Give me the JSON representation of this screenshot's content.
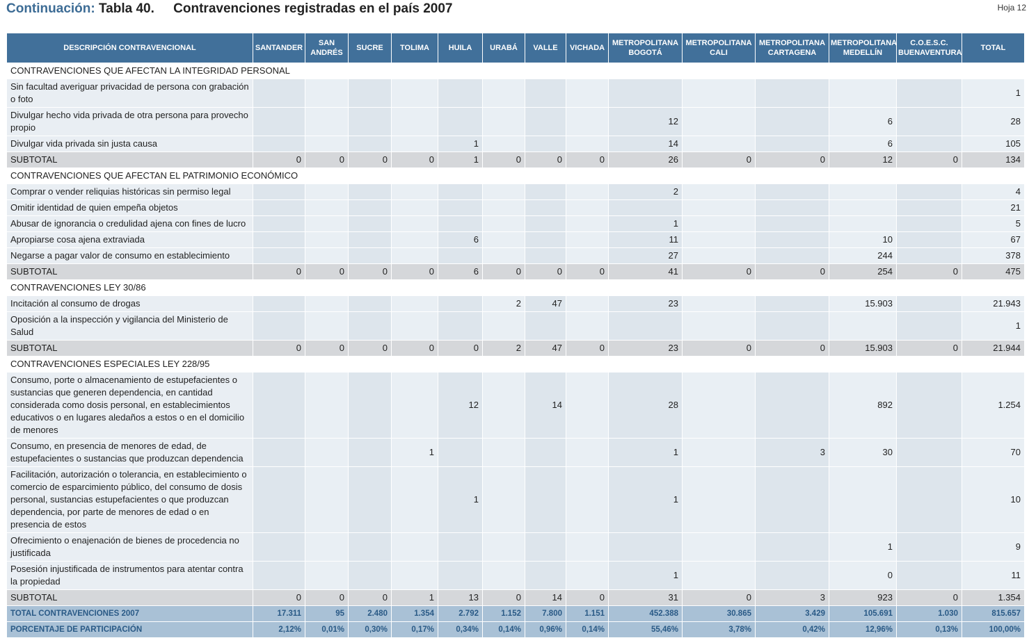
{
  "header": {
    "continuation": "Continuación:",
    "table": "Tabla 40.",
    "title": "Contravenciones registradas en el país 2007",
    "sheet": "Hoja 12"
  },
  "table": {
    "columns": [
      "DESCRIPCIÓN CONTRAVENCIONAL",
      "SANTANDER",
      "SAN ANDRÉS",
      "SUCRE",
      "TOLIMA",
      "HUILA",
      "URABÁ",
      "VALLE",
      "VICHADA",
      "METROPOLITANA BOGOTÁ",
      "METROPOLITANA CALI",
      "METROPOLITANA CARTAGENA",
      "METROPOLITANA MEDELLÍN",
      "C.O.E.S.C. BUENAVENTURA",
      "TOTAL"
    ],
    "sections": [
      {
        "title": "CONTRAVENCIONES QUE AFECTAN LA INTEGRIDAD PERSONAL",
        "rows": [
          {
            "label": "Sin facultad averiguar privacidad de persona con grabación o foto",
            "values": [
              null,
              null,
              null,
              null,
              null,
              null,
              null,
              null,
              null,
              null,
              null,
              null,
              null,
              "1"
            ]
          },
          {
            "label": "Divulgar hecho vida privada de otra persona para provecho propio",
            "values": [
              null,
              null,
              null,
              null,
              null,
              null,
              null,
              null,
              "12",
              null,
              null,
              "6",
              null,
              "28"
            ]
          },
          {
            "label": "Divulgar vida privada sin justa causa",
            "values": [
              null,
              null,
              null,
              null,
              "1",
              null,
              null,
              null,
              "14",
              null,
              null,
              "6",
              null,
              "105"
            ]
          }
        ],
        "subtotal": {
          "label": "SUBTOTAL",
          "values": [
            "0",
            "0",
            "0",
            "0",
            "1",
            "0",
            "0",
            "0",
            "26",
            "0",
            "0",
            "12",
            "0",
            "134"
          ]
        }
      },
      {
        "title": "CONTRAVENCIONES QUE AFECTAN EL PATRIMONIO ECONÓMICO",
        "rows": [
          {
            "label": "Comprar o vender reliquias históricas sin permiso legal",
            "values": [
              null,
              null,
              null,
              null,
              null,
              null,
              null,
              null,
              "2",
              null,
              null,
              null,
              null,
              "4"
            ]
          },
          {
            "label": "Omitir identidad de quien empeña objetos",
            "values": [
              null,
              null,
              null,
              null,
              null,
              null,
              null,
              null,
              null,
              null,
              null,
              null,
              null,
              "21"
            ]
          },
          {
            "label": "Abusar de ignorancia o credulidad ajena con fines de lucro",
            "values": [
              null,
              null,
              null,
              null,
              null,
              null,
              null,
              null,
              "1",
              null,
              null,
              null,
              null,
              "5"
            ]
          },
          {
            "label": "Apropiarse cosa ajena extraviada",
            "values": [
              null,
              null,
              null,
              null,
              "6",
              null,
              null,
              null,
              "11",
              null,
              null,
              "10",
              null,
              "67"
            ]
          },
          {
            "label": "Negarse a pagar valor de consumo en establecimiento",
            "values": [
              null,
              null,
              null,
              null,
              null,
              null,
              null,
              null,
              "27",
              null,
              null,
              "244",
              null,
              "378"
            ]
          }
        ],
        "subtotal": {
          "label": "SUBTOTAL",
          "values": [
            "0",
            "0",
            "0",
            "0",
            "6",
            "0",
            "0",
            "0",
            "41",
            "0",
            "0",
            "254",
            "0",
            "475"
          ]
        }
      },
      {
        "title": "CONTRAVENCIONES LEY 30/86",
        "rows": [
          {
            "label": "Incitación al consumo de drogas",
            "values": [
              null,
              null,
              null,
              null,
              null,
              "2",
              "47",
              null,
              "23",
              null,
              null,
              "15.903",
              null,
              "21.943"
            ]
          },
          {
            "label": "Oposición a la inspección y vigilancia del Ministerio de Salud",
            "values": [
              null,
              null,
              null,
              null,
              null,
              null,
              null,
              null,
              null,
              null,
              null,
              null,
              null,
              "1"
            ]
          }
        ],
        "subtotal": {
          "label": "SUBTOTAL",
          "values": [
            "0",
            "0",
            "0",
            "0",
            "0",
            "2",
            "47",
            "0",
            "23",
            "0",
            "0",
            "15.903",
            "0",
            "21.944"
          ]
        }
      },
      {
        "title": "CONTRAVENCIONES ESPECIALES LEY 228/95",
        "rows": [
          {
            "label": "Consumo, porte o almacenamiento de estupefacientes o sustancias que generen dependencia, en cantidad considerada como dosis personal, en establecimientos educativos o en lugares aledaños a estos o en el domicilio de menores",
            "values": [
              null,
              null,
              null,
              null,
              "12",
              null,
              "14",
              null,
              "28",
              null,
              null,
              "892",
              null,
              "1.254"
            ]
          },
          {
            "label": "Consumo, en presencia de menores de edad, de estupefacientes o sustancias que produzcan dependencia",
            "values": [
              null,
              null,
              null,
              "1",
              null,
              null,
              null,
              null,
              "1",
              null,
              "3",
              "30",
              null,
              "70"
            ]
          },
          {
            "label": "Facilitación, autorización o tolerancia, en establecimiento o comercio de esparcimiento público, del consumo de dosis personal, sustancias estupefacientes o que produzcan dependencia, por parte de menores de edad o en presencia de estos",
            "values": [
              null,
              null,
              null,
              null,
              "1",
              null,
              null,
              null,
              "1",
              null,
              null,
              null,
              null,
              "10"
            ]
          },
          {
            "label": "Ofrecimiento o enajenación de bienes de procedencia no justificada",
            "values": [
              null,
              null,
              null,
              null,
              null,
              null,
              null,
              null,
              null,
              null,
              null,
              "1",
              null,
              "9"
            ]
          },
          {
            "label": "Posesión injustificada de instrumentos para atentar contra la propiedad",
            "values": [
              null,
              null,
              null,
              null,
              null,
              null,
              null,
              null,
              "1",
              null,
              null,
              "0",
              null,
              "11"
            ]
          }
        ],
        "subtotal": {
          "label": "SUBTOTAL",
          "values": [
            "0",
            "0",
            "0",
            "1",
            "13",
            "0",
            "14",
            "0",
            "31",
            "0",
            "3",
            "923",
            "0",
            "1.354"
          ]
        }
      }
    ],
    "totals": [
      {
        "label": "TOTAL CONTRAVENCIONES 2007",
        "values": [
          "17.311",
          "95",
          "2.480",
          "1.354",
          "2.792",
          "1.152",
          "7.800",
          "1.151",
          "452.388",
          "30.865",
          "3.429",
          "105.691",
          "1.030",
          "815.657"
        ]
      },
      {
        "label": "PORCENTAJE DE PARTICIPACIÓN",
        "values": [
          "2,12%",
          "0,01%",
          "0,30%",
          "0,17%",
          "0,34%",
          "0,14%",
          "0,96%",
          "0,14%",
          "55,46%",
          "3,78%",
          "0,42%",
          "12,96%",
          "0,13%",
          "100,00%"
        ]
      }
    ]
  }
}
